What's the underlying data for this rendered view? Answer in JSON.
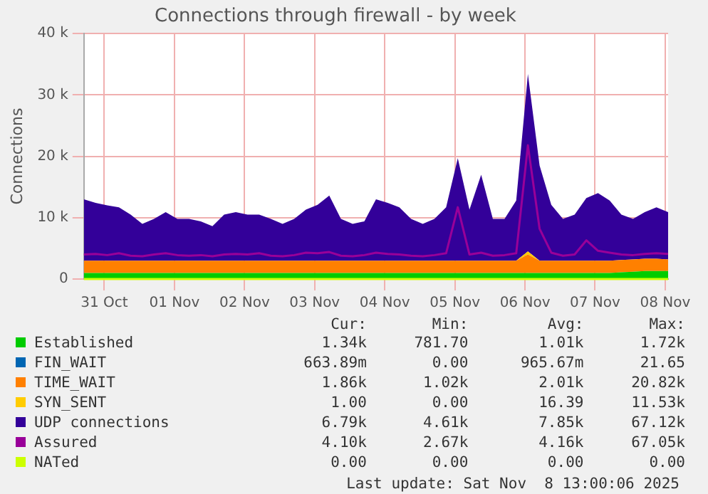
{
  "chart_data": {
    "type": "area",
    "title": "Connections through firewall - by week",
    "ylabel": "Connections",
    "stacked": true,
    "grid": true,
    "legend": "bottom",
    "marker": "none",
    "x": [
      "2025-10-31T05:00",
      "2025-10-31T09:00",
      "2025-10-31T13:00",
      "2025-10-31T17:00",
      "2025-10-31T21:00",
      "2025-11-01T01:00",
      "2025-11-01T05:00",
      "2025-11-01T09:00",
      "2025-11-01T13:00",
      "2025-11-01T17:00",
      "2025-11-01T21:00",
      "2025-11-02T01:00",
      "2025-11-02T05:00",
      "2025-11-02T09:00",
      "2025-11-02T13:00",
      "2025-11-02T17:00",
      "2025-11-02T21:00",
      "2025-11-03T01:00",
      "2025-11-03T05:00",
      "2025-11-03T09:00",
      "2025-11-03T13:00",
      "2025-11-03T17:00",
      "2025-11-03T21:00",
      "2025-11-04T01:00",
      "2025-11-04T05:00",
      "2025-11-04T09:00",
      "2025-11-04T13:00",
      "2025-11-04T17:00",
      "2025-11-04T21:00",
      "2025-11-05T01:00",
      "2025-11-05T05:00",
      "2025-11-05T09:00",
      "2025-11-05T13:00",
      "2025-11-05T17:00",
      "2025-11-05T21:00",
      "2025-11-06T01:00",
      "2025-11-06T05:00",
      "2025-11-06T09:00",
      "2025-11-06T13:00",
      "2025-11-06T17:00",
      "2025-11-06T21:00",
      "2025-11-07T01:00",
      "2025-11-07T05:00",
      "2025-11-07T09:00",
      "2025-11-07T13:00",
      "2025-11-07T17:00",
      "2025-11-07T21:00",
      "2025-11-08T01:00",
      "2025-11-08T05:00",
      "2025-11-08T09:00",
      "2025-11-08T13:00"
    ],
    "xlim": [
      "2025-10-31T05:00",
      "2025-11-08T13:00"
    ],
    "xticks": [
      {
        "value": "2025-10-31T12:00",
        "label": "31 Oct"
      },
      {
        "value": "2025-11-01T12:00",
        "label": "01 Nov"
      },
      {
        "value": "2025-11-02T12:00",
        "label": "02 Nov"
      },
      {
        "value": "2025-11-03T12:00",
        "label": "03 Nov"
      },
      {
        "value": "2025-11-04T12:00",
        "label": "04 Nov"
      },
      {
        "value": "2025-11-05T12:00",
        "label": "05 Nov"
      },
      {
        "value": "2025-11-06T12:00",
        "label": "06 Nov"
      },
      {
        "value": "2025-11-07T12:00",
        "label": "07 Nov"
      },
      {
        "value": "2025-11-08T12:00",
        "label": "08 Nov"
      }
    ],
    "ylim": [
      0,
      40000
    ],
    "yticks": [
      {
        "value": 0,
        "label": "0"
      },
      {
        "value": 10000,
        "label": "10 k"
      },
      {
        "value": 20000,
        "label": "20 k"
      },
      {
        "value": 30000,
        "label": "30 k"
      },
      {
        "value": 40000,
        "label": "40 k"
      }
    ],
    "series": [
      {
        "name": "Established",
        "color": "#00cc00",
        "values": [
          1000,
          1000,
          1000,
          1000,
          1000,
          1000,
          1000,
          1000,
          1000,
          1000,
          1000,
          1000,
          1000,
          1000,
          1000,
          1000,
          1000,
          1000,
          1000,
          1000,
          1000,
          1000,
          1000,
          1000,
          1000,
          1000,
          1000,
          1000,
          1000,
          1000,
          1000,
          1000,
          1000,
          1000,
          1000,
          1000,
          1000,
          1000,
          1000,
          1000,
          1000,
          1000,
          1000,
          1000,
          1000,
          1000,
          1100,
          1200,
          1300,
          1300,
          1300
        ]
      },
      {
        "name": "FIN_WAIT",
        "color": "#0066b3",
        "values": [
          null,
          null,
          null,
          null,
          null,
          null,
          null,
          null,
          null,
          null,
          null,
          null,
          null,
          null,
          null,
          null,
          null,
          null,
          null,
          null,
          null,
          null,
          null,
          null,
          null,
          null,
          null,
          null,
          null,
          null,
          null,
          null,
          null,
          null,
          null,
          null,
          null,
          null,
          null,
          null,
          null,
          null,
          null,
          null,
          null,
          null,
          null,
          null,
          null,
          null,
          null
        ]
      },
      {
        "name": "TIME_WAIT",
        "color": "#ff8000",
        "values": [
          2000,
          2000,
          2000,
          2000,
          2000,
          2000,
          2000,
          2000,
          2000,
          2000,
          2000,
          2000,
          2000,
          2000,
          2000,
          2000,
          2000,
          2000,
          2000,
          2000,
          2000,
          2000,
          2000,
          2000,
          2000,
          2000,
          2000,
          2000,
          2000,
          2000,
          2000,
          2000,
          2000,
          2000,
          2000,
          2000,
          2000,
          2000,
          3000,
          2000,
          2000,
          2000,
          2000,
          2000,
          2000,
          2000,
          2000,
          2000,
          2000,
          2000,
          1900
        ]
      },
      {
        "name": "SYN_SENT",
        "color": "#ffcc00",
        "values": [
          0,
          0,
          0,
          0,
          0,
          0,
          0,
          0,
          0,
          0,
          0,
          0,
          0,
          0,
          0,
          0,
          0,
          0,
          0,
          0,
          0,
          0,
          0,
          0,
          0,
          0,
          0,
          0,
          0,
          0,
          0,
          0,
          0,
          0,
          0,
          0,
          0,
          0,
          500,
          0,
          0,
          0,
          0,
          0,
          0,
          0,
          0,
          0,
          0,
          0,
          0
        ]
      },
      {
        "name": "UDP connections",
        "color": "#330099",
        "values": [
          10000,
          9400,
          9000,
          8700,
          7500,
          6000,
          6800,
          7900,
          6800,
          6800,
          6400,
          5600,
          7500,
          7900,
          7500,
          7500,
          6800,
          6000,
          6800,
          8300,
          9100,
          10600,
          6800,
          6000,
          6400,
          10000,
          9400,
          8700,
          6800,
          6000,
          6800,
          8700,
          16700,
          8300,
          14000,
          6800,
          6800,
          9800,
          28900,
          15500,
          9100,
          6800,
          7500,
          10200,
          11000,
          9800,
          7400,
          6600,
          7600,
          8400,
          7700
        ]
      },
      {
        "name": "Assured",
        "type": "line",
        "color": "#990099",
        "values": [
          4000,
          4100,
          3900,
          4200,
          3800,
          3700,
          4000,
          4200,
          3900,
          3800,
          3900,
          3700,
          4000,
          4100,
          4000,
          4200,
          3800,
          3700,
          3900,
          4300,
          4200,
          4400,
          3800,
          3700,
          3900,
          4300,
          4100,
          4000,
          3800,
          3700,
          3900,
          4200,
          11700,
          4000,
          4300,
          3800,
          3900,
          4200,
          21800,
          8200,
          4300,
          3800,
          4000,
          6300,
          4600,
          4300,
          4000,
          3900,
          4100,
          4200,
          4100
        ]
      },
      {
        "name": "NATed",
        "type": "line",
        "color": "#ccff00",
        "values": [
          0,
          0,
          0,
          0,
          0,
          0,
          0,
          0,
          0,
          0,
          0,
          0,
          0,
          0,
          0,
          0,
          0,
          0,
          0,
          0,
          0,
          0,
          0,
          0,
          0,
          0,
          0,
          0,
          0,
          0,
          0,
          0,
          0,
          0,
          0,
          0,
          0,
          0,
          0,
          0,
          0,
          0,
          0,
          0,
          0,
          0,
          0,
          0,
          0,
          0,
          0
        ]
      }
    ],
    "annotations": [
      "Cur:",
      "Min:",
      "Avg:",
      "Max:",
      "1.34k",
      "781.70",
      "1.01k",
      "1.72k",
      "663.89m",
      "0.00",
      "965.67m",
      "21.65",
      "1.86k",
      "1.02k",
      "2.01k",
      "20.82k",
      "1.00",
      "0.00",
      "16.39",
      "11.53k",
      "6.79k",
      "4.61k",
      "7.85k",
      "67.12k",
      "4.10k",
      "2.67k",
      "4.16k",
      "67.05k",
      "0.00",
      "0.00",
      "0.00",
      "0.00",
      "Last update: Sat Nov  8 13:00:06 2025"
    ]
  }
}
